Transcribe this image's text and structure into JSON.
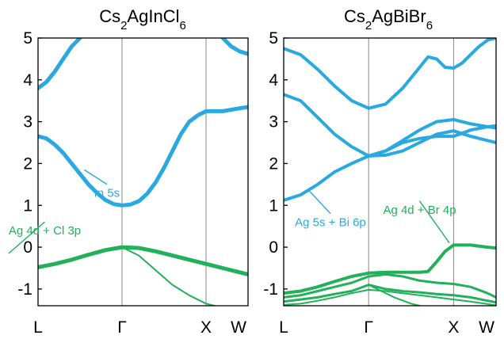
{
  "colors": {
    "conduction": "#2aa9e0",
    "valence": "#22b05a",
    "axis": "#000000",
    "kpath_line": "#888888"
  },
  "chart_data": [
    {
      "type": "line",
      "title": {
        "base": "Cs",
        "sub1": "2",
        "mid": "AgInCl",
        "sub2": "6"
      },
      "xlabel": "",
      "ylabel": "",
      "x_ticks": [
        "L",
        "Γ",
        "X",
        "W"
      ],
      "x_tick_positions": [
        0,
        1,
        2,
        2.5
      ],
      "xlim": [
        0,
        2.5
      ],
      "ylim": [
        -1.4,
        5
      ],
      "y_ticks": [
        -1,
        0,
        1,
        2,
        3,
        4,
        5
      ],
      "y_tick_labels": [
        "-1",
        "0",
        "1",
        "2",
        "3",
        "4",
        "5"
      ],
      "grid": false,
      "annotations": [
        {
          "text": "In 5s",
          "color": "conduction",
          "point": [
            0.55,
            1.85
          ],
          "label_at": [
            0.82,
            1.2
          ]
        },
        {
          "text": "Ag 4d + Cl 3p",
          "color": "valence",
          "point": [
            -0.35,
            -0.15
          ],
          "label_at": [
            0.08,
            0.3
          ]
        }
      ],
      "series": [
        {
          "kind": "conduction",
          "width": 5,
          "x": [
            0,
            0.1,
            0.2,
            0.3,
            0.4,
            0.5
          ],
          "y": [
            3.8,
            3.95,
            4.2,
            4.5,
            4.8,
            5.0
          ]
        },
        {
          "kind": "conduction",
          "width": 5,
          "x": [
            0,
            0.1,
            0.2,
            0.3,
            0.4,
            0.5,
            0.6,
            0.7,
            0.8,
            0.9,
            1.0,
            1.1,
            1.2,
            1.3,
            1.4,
            1.5,
            1.6,
            1.7,
            1.8,
            1.9,
            2.0,
            2.2,
            2.4,
            2.5
          ],
          "y": [
            2.65,
            2.6,
            2.45,
            2.25,
            2.0,
            1.75,
            1.5,
            1.3,
            1.13,
            1.03,
            1.0,
            1.02,
            1.1,
            1.28,
            1.55,
            1.9,
            2.3,
            2.7,
            3.0,
            3.15,
            3.25,
            3.25,
            3.32,
            3.35
          ]
        },
        {
          "kind": "conduction",
          "width": 5,
          "x": [
            2.2,
            2.3,
            2.4,
            2.5
          ],
          "y": [
            5.0,
            4.8,
            4.68,
            4.62
          ]
        },
        {
          "kind": "valence",
          "width": 5,
          "x": [
            0,
            0.2,
            0.4,
            0.6,
            0.8,
            1.0,
            1.2,
            1.4,
            1.6,
            1.8,
            2.0,
            2.2,
            2.4,
            2.5
          ],
          "y": [
            -0.48,
            -0.4,
            -0.3,
            -0.18,
            -0.07,
            0.0,
            -0.02,
            -0.1,
            -0.2,
            -0.3,
            -0.4,
            -0.5,
            -0.6,
            -0.65
          ]
        },
        {
          "kind": "valence",
          "width": 2,
          "x": [
            1.0,
            1.2,
            1.4,
            1.6,
            1.8,
            2.0,
            2.1
          ],
          "y": [
            0.0,
            -0.2,
            -0.55,
            -0.9,
            -1.15,
            -1.35,
            -1.4
          ]
        }
      ]
    },
    {
      "type": "line",
      "title": {
        "base": "Cs",
        "sub1": "2",
        "mid": "AgBiBr",
        "sub2": "6"
      },
      "xlabel": "",
      "ylabel": "",
      "x_ticks": [
        "L",
        "Γ",
        "X",
        "W"
      ],
      "x_tick_positions": [
        0,
        1,
        2,
        2.5
      ],
      "xlim": [
        0,
        2.5
      ],
      "ylim": [
        -1.4,
        5
      ],
      "y_ticks": [
        -1,
        0,
        1,
        2,
        3,
        4,
        5
      ],
      "y_tick_labels": [
        "-1",
        "0",
        "1",
        "2",
        "3",
        "4",
        "5"
      ],
      "grid": false,
      "annotations": [
        {
          "text": "Ag 5s + Bi 6p",
          "color": "conduction",
          "point": [
            0.3,
            1.35
          ],
          "label_at": [
            0.55,
            0.5
          ]
        },
        {
          "text": "Ag 4d + Br 4p",
          "color": "valence",
          "point": [
            1.95,
            0.1
          ],
          "label_at": [
            1.6,
            0.8
          ]
        }
      ],
      "series": [
        {
          "kind": "conduction",
          "width": 4,
          "x": [
            0,
            0.2,
            0.4,
            0.6,
            0.8,
            1.0,
            1.2,
            1.4,
            1.6,
            1.7,
            1.8,
            1.9,
            2.0,
            2.1,
            2.2,
            2.3,
            2.4,
            2.5
          ],
          "y": [
            4.75,
            4.6,
            4.25,
            3.85,
            3.5,
            3.32,
            3.42,
            3.8,
            4.3,
            4.55,
            4.5,
            4.3,
            4.28,
            4.4,
            4.6,
            4.8,
            4.95,
            5.0
          ]
        },
        {
          "kind": "conduction",
          "width": 4,
          "x": [
            0,
            0.2,
            0.4,
            0.6,
            0.8,
            1.0,
            1.2,
            1.4,
            1.6,
            1.8,
            2.0,
            2.2,
            2.4,
            2.5
          ],
          "y": [
            3.65,
            3.5,
            3.1,
            2.7,
            2.4,
            2.18,
            2.3,
            2.5,
            2.6,
            2.65,
            2.65,
            2.8,
            2.88,
            2.9
          ]
        },
        {
          "kind": "conduction",
          "width": 4,
          "x": [
            1.0,
            1.2,
            1.4,
            1.6,
            1.8,
            2.0,
            2.2,
            2.4,
            2.5
          ],
          "y": [
            2.18,
            2.2,
            2.3,
            2.5,
            2.7,
            2.78,
            2.65,
            2.55,
            2.5
          ]
        },
        {
          "kind": "conduction",
          "width": 4,
          "x": [
            0,
            0.2,
            0.4,
            0.6,
            0.8,
            1.0,
            1.2,
            1.4,
            1.6,
            1.8,
            2.0,
            2.2,
            2.4,
            2.5
          ],
          "y": [
            1.12,
            1.25,
            1.5,
            1.8,
            2.0,
            2.18,
            2.3,
            2.55,
            2.8,
            3.0,
            3.05,
            2.95,
            2.88,
            2.85
          ]
        },
        {
          "kind": "valence",
          "width": 4,
          "x": [
            0,
            0.2,
            0.4,
            0.6,
            0.8,
            1.0,
            1.2,
            1.4,
            1.6,
            1.7,
            1.8,
            1.9,
            2.0,
            2.2,
            2.4,
            2.5
          ],
          "y": [
            -1.1,
            -1.05,
            -0.95,
            -0.82,
            -0.7,
            -0.62,
            -0.6,
            -0.6,
            -0.6,
            -0.58,
            -0.35,
            -0.1,
            0.05,
            0.05,
            0.0,
            -0.02
          ]
        },
        {
          "kind": "valence",
          "width": 3,
          "x": [
            0,
            0.2,
            0.4,
            0.6,
            0.8,
            1.0,
            1.2,
            1.4,
            1.6,
            1.8,
            2.0,
            2.2,
            2.4,
            2.5
          ],
          "y": [
            -1.2,
            -1.15,
            -1.05,
            -0.95,
            -0.85,
            -0.7,
            -0.65,
            -0.7,
            -0.8,
            -0.85,
            -0.88,
            -0.95,
            -1.1,
            -1.2
          ]
        },
        {
          "kind": "valence",
          "width": 3,
          "x": [
            0,
            0.2,
            0.4,
            0.6,
            0.8,
            1.0,
            1.2,
            1.4,
            1.6,
            1.8,
            2.0,
            2.2,
            2.4,
            2.5
          ],
          "y": [
            -1.3,
            -1.25,
            -1.2,
            -1.12,
            -1.05,
            -0.9,
            -1.0,
            -1.05,
            -1.08,
            -1.12,
            -1.15,
            -1.2,
            -1.28,
            -1.32
          ]
        },
        {
          "kind": "valence",
          "width": 2,
          "x": [
            0,
            0.2,
            0.4,
            0.6,
            0.8,
            1.0,
            1.2,
            1.4,
            1.6,
            1.8,
            2.0,
            2.2,
            2.4,
            2.5
          ],
          "y": [
            -1.38,
            -1.35,
            -1.28,
            -1.2,
            -1.1,
            -1.02,
            -1.05,
            -1.1,
            -1.15,
            -1.2,
            -1.25,
            -1.3,
            -1.36,
            -1.39
          ]
        },
        {
          "kind": "valence",
          "width": 2,
          "x": [
            1.0,
            1.15,
            1.3,
            1.5,
            1.6
          ],
          "y": [
            -0.9,
            -1.05,
            -1.2,
            -1.35,
            -1.4
          ]
        }
      ]
    }
  ]
}
